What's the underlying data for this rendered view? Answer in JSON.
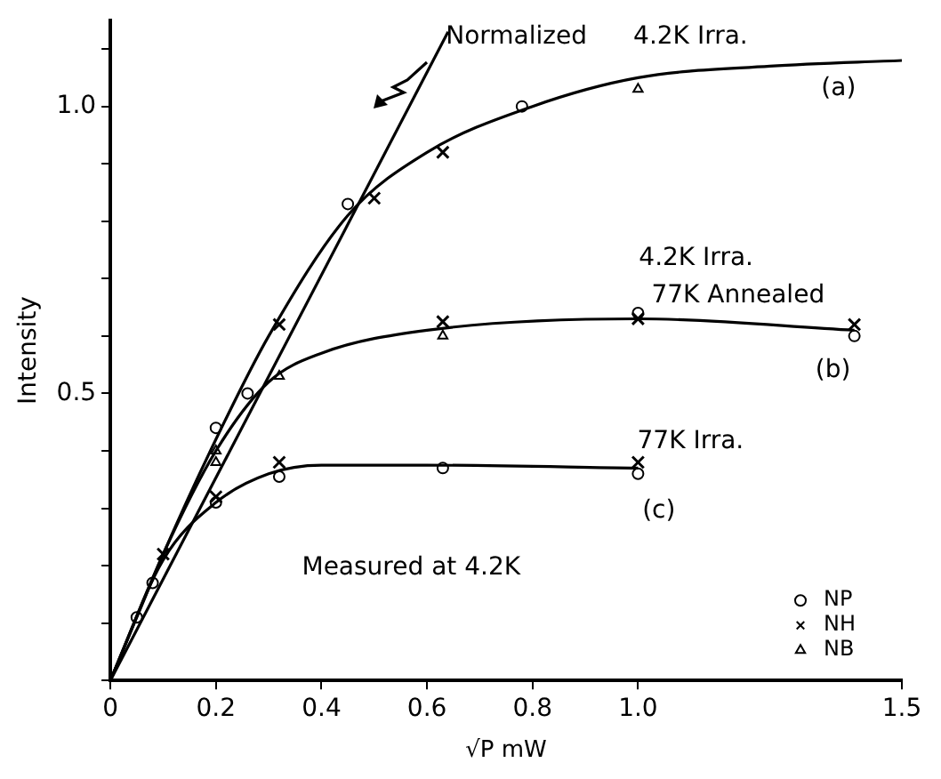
{
  "chart_data": {
    "type": "line",
    "xlabel": "√P mW",
    "ylabel": "Intensity",
    "xlim": [
      0,
      1.5
    ],
    "ylim": [
      0,
      1.15
    ],
    "xticks": [
      0,
      0.2,
      0.4,
      0.6,
      0.8,
      {
        "value": 1.0,
        "label": "1.0"
      },
      {
        "value": 1.5,
        "label": "1.5"
      }
    ],
    "yticks": [
      {
        "value": 0,
        "label": null
      },
      {
        "value": 0.1,
        "label": null
      },
      {
        "value": 0.2,
        "label": null
      },
      {
        "value": 0.3,
        "label": null
      },
      {
        "value": 0.4,
        "label": null
      },
      0.5,
      {
        "value": 0.6,
        "label": null
      },
      {
        "value": 0.7,
        "label": null
      },
      {
        "value": 0.8,
        "label": null
      },
      {
        "value": 0.9,
        "label": null
      },
      {
        "value": 1.0,
        "label": "1.0"
      },
      {
        "value": 1.1,
        "label": null
      }
    ],
    "grid": false,
    "legend": "bottom right",
    "line_style": "solid",
    "marker": "none",
    "series": [
      {
        "color": "#000000",
        "x": [
          0,
          0.64
        ],
        "values": [
          0,
          1.13
        ]
      },
      {
        "color": "#000000",
        "x": [
          0,
          0.05,
          0.1,
          0.2,
          0.3,
          0.45,
          0.6,
          0.8,
          1.0,
          1.25,
          1.5
        ],
        "values": [
          0,
          0.11,
          0.22,
          0.42,
          0.6,
          0.81,
          0.92,
          1.0,
          1.05,
          1.07,
          1.08
        ]
      },
      {
        "color": "#000000",
        "x": [
          0,
          0.1,
          0.2,
          0.3,
          0.4,
          0.6,
          1.0,
          1.41
        ],
        "values": [
          0,
          0.22,
          0.4,
          0.52,
          0.57,
          0.61,
          0.63,
          0.61
        ]
      },
      {
        "color": "#000000",
        "x": [
          0,
          0.1,
          0.2,
          0.3,
          0.4,
          0.6,
          1.0
        ],
        "values": [
          0,
          0.21,
          0.31,
          0.36,
          0.375,
          0.375,
          0.37
        ]
      },
      {
        "type": "scatter",
        "name": "NP",
        "color": "#000000",
        "marker": "circle",
        "x": [
          0.05,
          0.08,
          0.2,
          0.26,
          0.45,
          0.78,
          0.2,
          0.32,
          0.63,
          1.0,
          1.0,
          1.41
        ],
        "values": [
          0.11,
          0.17,
          0.44,
          0.5,
          0.83,
          1.0,
          0.31,
          0.355,
          0.37,
          0.36,
          0.64,
          0.6
        ]
      },
      {
        "type": "scatter",
        "name": "NH",
        "color": "#000000",
        "marker": "cross",
        "x": [
          0.1,
          0.2,
          0.32,
          0.32,
          0.5,
          0.63,
          0.63,
          1.0,
          1.0,
          1.41
        ],
        "values": [
          0.22,
          0.32,
          0.38,
          0.62,
          0.84,
          0.92,
          0.625,
          0.63,
          0.38,
          0.62
        ]
      },
      {
        "type": "scatter",
        "name": "NB",
        "color": "#000000",
        "marker": "triangle",
        "x": [
          0.2,
          0.2,
          0.32,
          0.63,
          1.0
        ],
        "values": [
          0.38,
          0.4,
          0.53,
          0.6,
          1.03
        ]
      }
    ],
    "annotations": [
      "Normalized",
      "4.2K Irra.",
      "(a)",
      "4.2K Irra.",
      "77K Annealed",
      "(b)",
      "77K Irra.",
      "(c)",
      "Measured at 4.2K"
    ]
  }
}
